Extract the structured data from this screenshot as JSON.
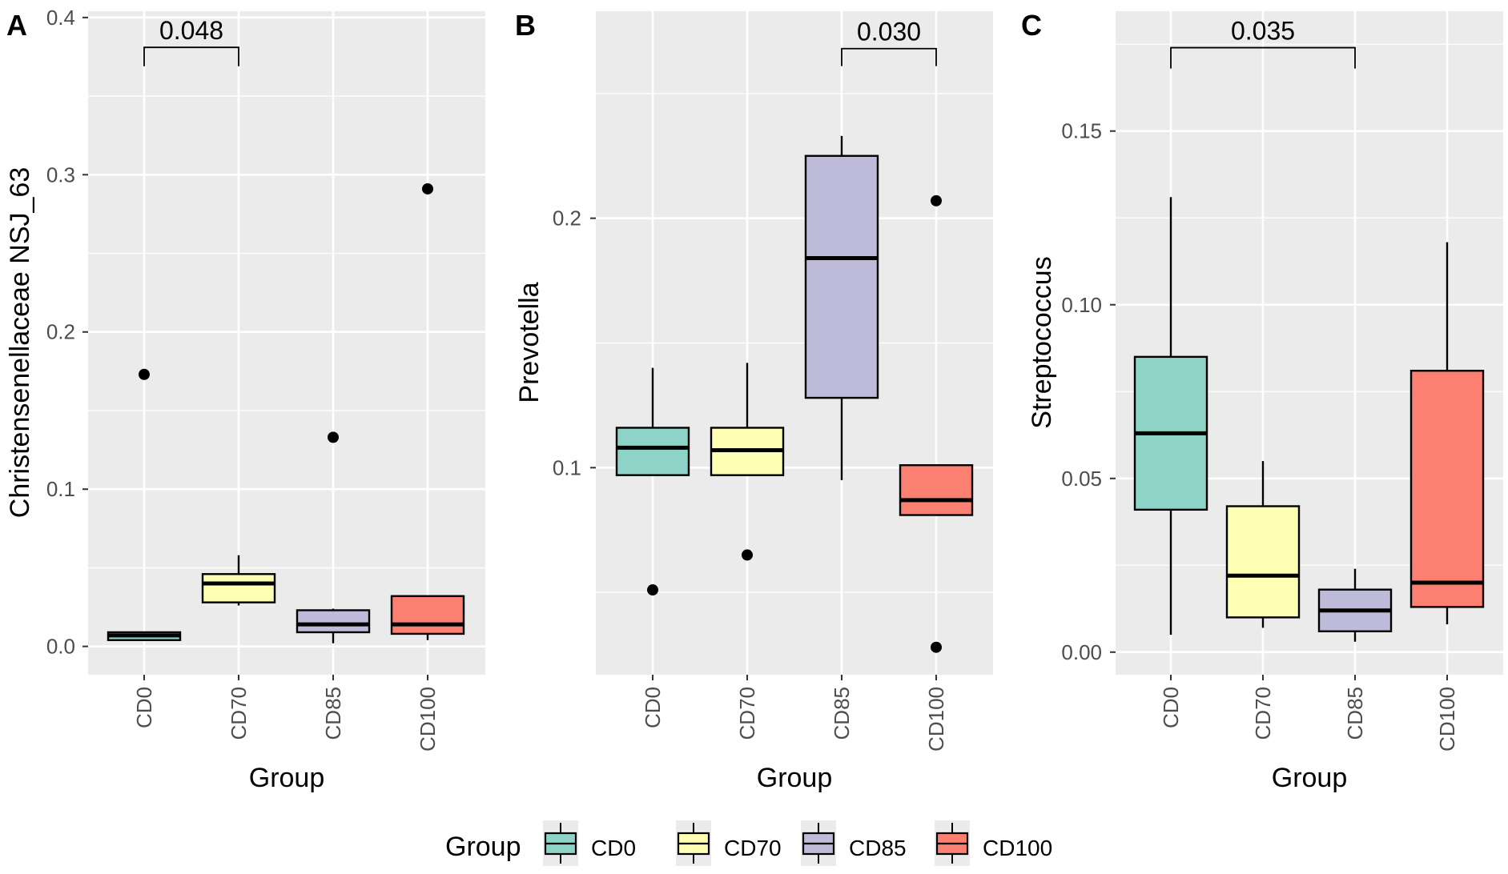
{
  "chart_data": [
    {
      "type": "boxplot",
      "panel_label": "A",
      "ylabel": "Christensenellaceae NSJ_63",
      "xlabel": "Group",
      "ylim": [
        -0.018,
        0.404
      ],
      "yticks": [
        0.0,
        0.1,
        0.2,
        0.3,
        0.4
      ],
      "ytick_labels": [
        "0.0",
        "0.1",
        "0.2",
        "0.3",
        "0.4"
      ],
      "categories": [
        "CD0",
        "CD70",
        "CD85",
        "CD100"
      ],
      "boxes": [
        {
          "group": "CD0",
          "whisker_low": 0.004,
          "q1": 0.004,
          "median": 0.007,
          "q3": 0.009,
          "whisker_high": 0.009,
          "outliers": [
            0.173
          ]
        },
        {
          "group": "CD70",
          "whisker_low": 0.026,
          "q1": 0.028,
          "median": 0.04,
          "q3": 0.046,
          "whisker_high": 0.058,
          "outliers": []
        },
        {
          "group": "CD85",
          "whisker_low": 0.002,
          "q1": 0.009,
          "median": 0.014,
          "q3": 0.023,
          "whisker_high": 0.024,
          "outliers": [
            0.133
          ]
        },
        {
          "group": "CD100",
          "whisker_low": 0.004,
          "q1": 0.008,
          "median": 0.014,
          "q3": 0.032,
          "whisker_high": 0.032,
          "outliers": [
            0.291
          ]
        }
      ],
      "comparison": {
        "from": "CD0",
        "to": "CD70",
        "label": "0.048",
        "y_level": 0.381,
        "y_drop": 0.369
      }
    },
    {
      "type": "boxplot",
      "panel_label": "B",
      "ylabel": "Prevotella",
      "xlabel": "Group",
      "ylim": [
        0.017,
        0.283
      ],
      "yticks": [
        0.1,
        0.2
      ],
      "ytick_labels": [
        "0.1",
        "0.2"
      ],
      "categories": [
        "CD0",
        "CD70",
        "CD85",
        "CD100"
      ],
      "boxes": [
        {
          "group": "CD0",
          "whisker_low": 0.097,
          "q1": 0.097,
          "median": 0.108,
          "q3": 0.116,
          "whisker_high": 0.14,
          "outliers": [
            0.051
          ]
        },
        {
          "group": "CD70",
          "whisker_low": 0.097,
          "q1": 0.097,
          "median": 0.107,
          "q3": 0.116,
          "whisker_high": 0.142,
          "outliers": [
            0.065
          ]
        },
        {
          "group": "CD85",
          "whisker_low": 0.095,
          "q1": 0.128,
          "median": 0.184,
          "q3": 0.225,
          "whisker_high": 0.233,
          "outliers": []
        },
        {
          "group": "CD100",
          "whisker_low": 0.081,
          "q1": 0.081,
          "median": 0.087,
          "q3": 0.101,
          "whisker_high": 0.101,
          "outliers": [
            0.207,
            0.028
          ]
        }
      ],
      "comparison": {
        "from": "CD85",
        "to": "CD100",
        "label": "0.030",
        "y_level": 0.268,
        "y_drop": 0.261
      }
    },
    {
      "type": "boxplot",
      "panel_label": "C",
      "ylabel": "Streptococcus",
      "xlabel": "Group",
      "ylim": [
        -0.0065,
        0.1845
      ],
      "yticks": [
        0.0,
        0.05,
        0.1,
        0.15
      ],
      "ytick_labels": [
        "0.00",
        "0.05",
        "0.10",
        "0.15"
      ],
      "categories": [
        "CD0",
        "CD70",
        "CD85",
        "CD100"
      ],
      "boxes": [
        {
          "group": "CD0",
          "whisker_low": 0.005,
          "q1": 0.041,
          "median": 0.063,
          "q3": 0.085,
          "whisker_high": 0.131,
          "outliers": []
        },
        {
          "group": "CD70",
          "whisker_low": 0.007,
          "q1": 0.01,
          "median": 0.022,
          "q3": 0.042,
          "whisker_high": 0.055,
          "outliers": []
        },
        {
          "group": "CD85",
          "whisker_low": 0.003,
          "q1": 0.006,
          "median": 0.012,
          "q3": 0.018,
          "whisker_high": 0.024,
          "outliers": []
        },
        {
          "group": "CD100",
          "whisker_low": 0.008,
          "q1": 0.013,
          "median": 0.02,
          "q3": 0.081,
          "whisker_high": 0.118,
          "outliers": []
        }
      ],
      "comparison": {
        "from": "CD0",
        "to": "CD85",
        "label": "0.035",
        "y_level": 0.174,
        "y_drop": 0.168
      }
    }
  ],
  "legend": {
    "title": "Group",
    "items": [
      {
        "label": "CD0",
        "color": "#8dd3c7"
      },
      {
        "label": "CD70",
        "color": "#ffffb3"
      },
      {
        "label": "CD85",
        "color": "#bebada"
      },
      {
        "label": "CD100",
        "color": "#fb8072"
      }
    ]
  },
  "colors": {
    "panel_background": "#ebebeb",
    "gridline": "#ffffff",
    "ink": "#000000",
    "tick_text": "#4d4d4d"
  }
}
